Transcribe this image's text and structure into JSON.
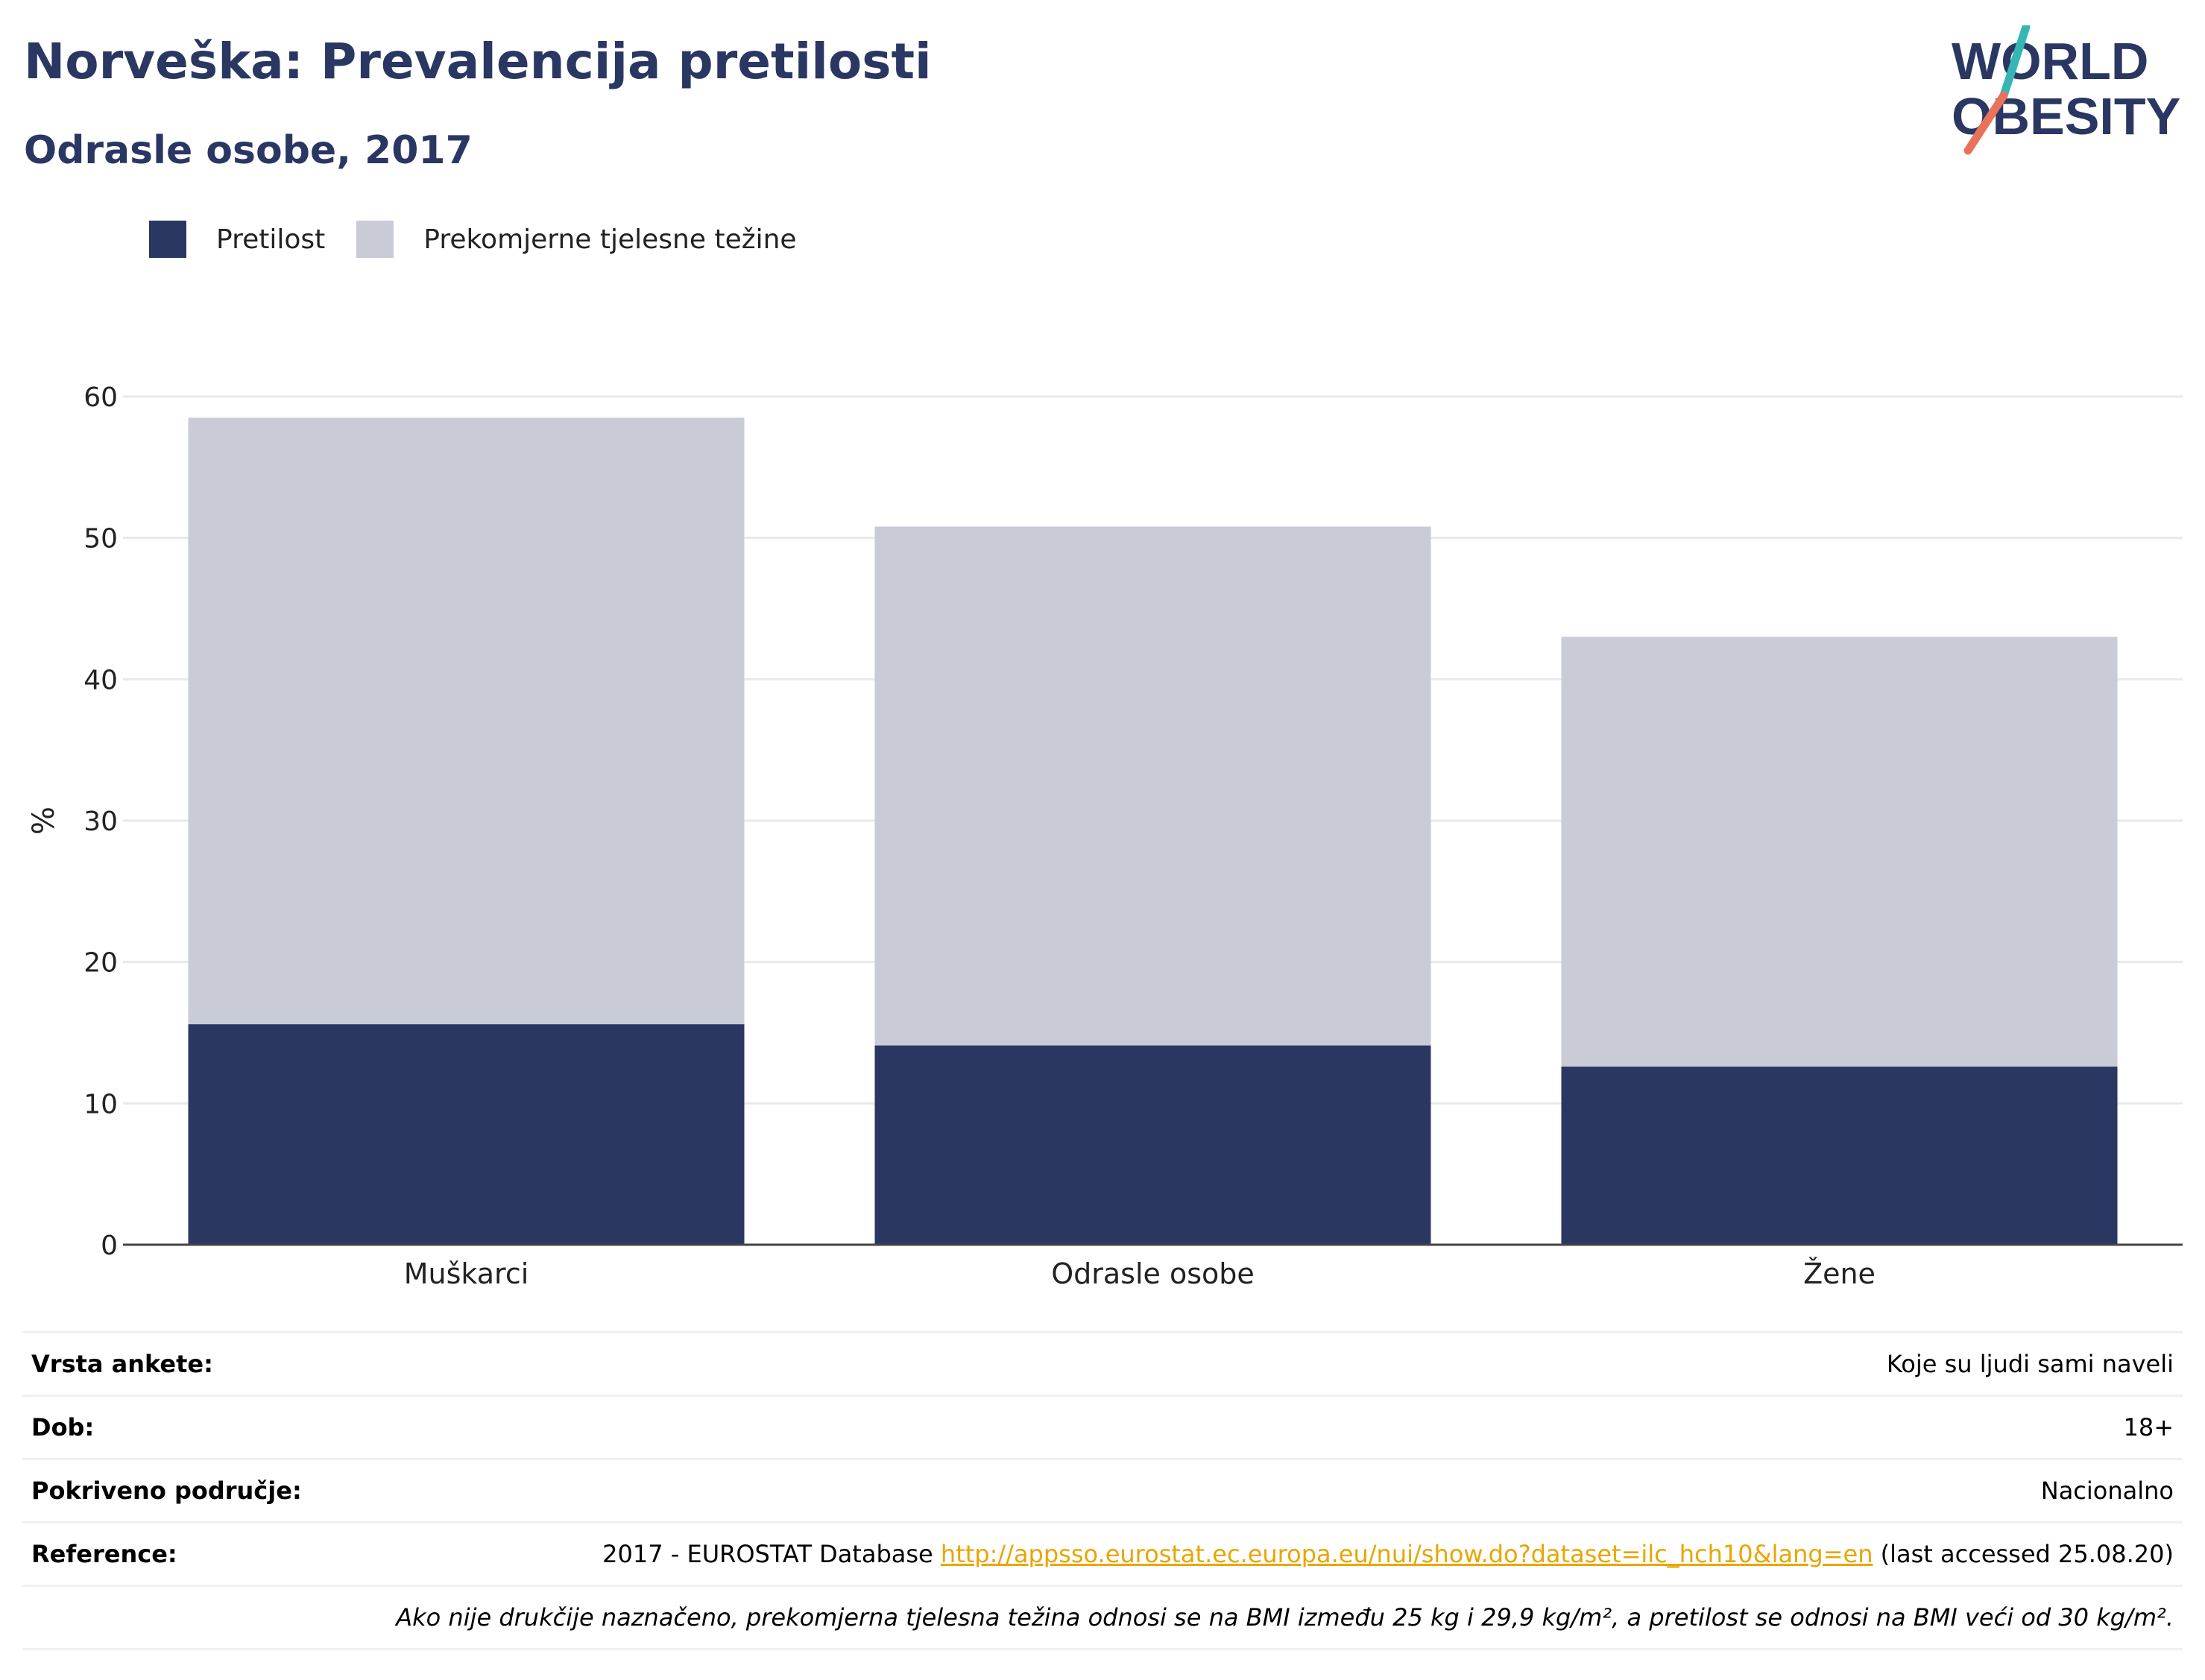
{
  "header": {
    "title": "Norveška: Prevalencija pretilosti",
    "subtitle": "Odrasle osobe, 2017",
    "logo": {
      "line1": "WORLD",
      "line2": "OBESITY"
    }
  },
  "colors": {
    "primary": "#2a3763",
    "overweight": "#c9cbd7",
    "accent_teal": "#35b6b4",
    "accent_coral": "#e8735a",
    "link": "#e8a600"
  },
  "chart_data": {
    "type": "bar",
    "stacked": true,
    "categories": [
      "Muškarci",
      "Odrasle osobe",
      "Žene"
    ],
    "series": [
      {
        "name": "Pretilost",
        "values": [
          15.6,
          14.1,
          12.6
        ],
        "color": "#2a3763"
      },
      {
        "name": "Prekomjerne tjelesne težine",
        "values": [
          42.9,
          36.7,
          30.4
        ],
        "color": "#c9cbd7"
      }
    ],
    "ylabel": "%",
    "ylim": [
      0,
      60
    ],
    "yticks": [
      "0",
      "10",
      "20",
      "30",
      "40",
      "50",
      "60"
    ],
    "grid": true,
    "legend_position": "top-left"
  },
  "info": {
    "rows": [
      {
        "key": "Vrsta ankete:",
        "value": "Koje su ljudi sami naveli"
      },
      {
        "key": "Dob:",
        "value": "18+"
      },
      {
        "key": "Pokriveno područje:",
        "value": "Nacionalno"
      }
    ],
    "reference": {
      "key": "Reference:",
      "prefix": "2017 - EUROSTAT Database ",
      "link": "http://appsso.eurostat.ec.europa.eu/nui/show.do?dataset=ilc_hch10&lang=en",
      "suffix": " (last accessed 25.08.20)"
    },
    "note": "Ako nije drukčije naznačeno, prekomjerna tjelesna težina odnosi se na BMI između 25 kg i 29,9 kg/m², a pretilost se odnosi na BMI veći od 30 kg/m²."
  }
}
